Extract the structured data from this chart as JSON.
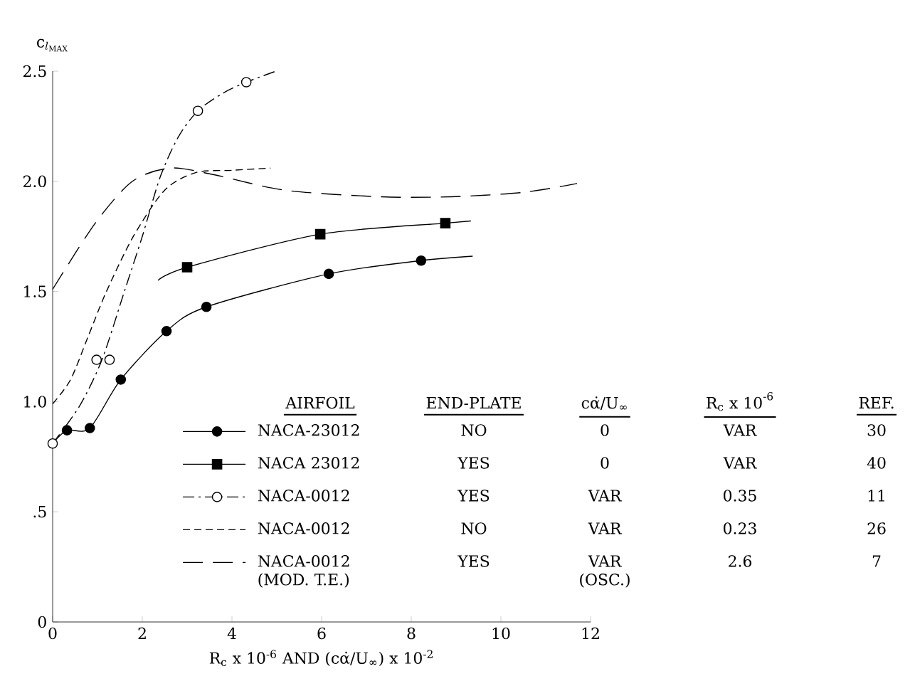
{
  "chart_data": {
    "type": "line",
    "ylabel": "\\mathrm{c}_{l_{\\mathrm{MAX}}}",
    "xlabel": "R$_{c}$ x 10$^{-6}$ AND (cα̇/U$_{∞}$) x 10$^{-2}$",
    "xlim": [
      0,
      12
    ],
    "ylim": [
      0,
      2.5
    ],
    "xticks": [
      0,
      2,
      4,
      6,
      8,
      10,
      12
    ],
    "yticks": [
      0,
      {
        "value": 0.5,
        "label": ".5"
      },
      {
        "value": 1,
        "label": "1.0"
      },
      1.5,
      {
        "value": 2,
        "label": "2.0"
      },
      2.5
    ],
    "legend": "bottom",
    "series": [
      {
        "line_style": "solid",
        "color": "#000000",
        "x": [
          0,
          0.32,
          0.83,
          1.52,
          2.54,
          3.43,
          6.16,
          8.22,
          9.37
        ],
        "values": [
          0.81,
          0.87,
          0.88,
          1.1,
          1.32,
          1.43,
          1.58,
          1.64,
          1.66
        ]
      },
      {
        "name": "NACA-23012",
        "type": "scatter",
        "marker": "circle",
        "color": "#000000",
        "x": [
          0.32,
          0.83,
          1.52,
          2.54,
          3.43,
          6.16,
          8.22
        ],
        "values": [
          0.87,
          0.88,
          1.1,
          1.32,
          1.43,
          1.58,
          1.64
        ]
      },
      {
        "line_style": "solid",
        "color": "#000000",
        "x": [
          2.35,
          3.0,
          5.97,
          8.76,
          9.33
        ],
        "values": [
          1.55,
          1.61,
          1.76,
          1.81,
          1.82
        ]
      },
      {
        "name": "NACA 23012",
        "type": "scatter",
        "marker": "square",
        "color": "#000000",
        "x": [
          3.0,
          5.97,
          8.76
        ],
        "values": [
          1.61,
          1.76,
          1.81
        ]
      },
      {
        "line_style": "dashdotted",
        "color": "#000000",
        "x": [
          0,
          0.6,
          1.1,
          1.6,
          2.0,
          2.4,
          2.8,
          3.24,
          3.8,
          4.32,
          4.98
        ],
        "values": [
          0.81,
          0.98,
          1.19,
          1.5,
          1.75,
          2.02,
          2.2,
          2.32,
          2.4,
          2.45,
          2.5
        ]
      },
      {
        "name": "NACA-0012",
        "type": "scatter",
        "marker": "circle",
        "color": "#ffffff",
        "x": [
          0,
          0.98,
          1.27,
          3.24,
          4.32
        ],
        "values": [
          0.81,
          1.19,
          1.19,
          2.32,
          2.45
        ]
      },
      {
        "name": "NACA-0012",
        "line_style": "dashed",
        "color": "#000000",
        "x": [
          0,
          0.4,
          0.8,
          1.2,
          1.8,
          2.5,
          3.2,
          4.0,
          4.86
        ],
        "values": [
          0.99,
          1.1,
          1.3,
          1.5,
          1.75,
          1.96,
          2.04,
          2.05,
          2.06
        ]
      },
      {
        "name": "NACA-0012 (MOD. T.E.)",
        "line_style": "long dashed",
        "color": "#000000",
        "x": [
          0,
          0.95,
          1.78,
          2.63,
          3.6,
          5.17,
          7.3,
          8.9,
          10.5,
          11.7
        ],
        "values": [
          1.51,
          1.81,
          2.0,
          2.06,
          2.03,
          1.96,
          1.93,
          1.93,
          1.95,
          1.99
        ]
      }
    ],
    "annotations": [
      "AIRFOIL",
      "END-PLATE",
      "cα̇/U$_{∞}$",
      "R$_{c}$ x 10$^{-6}$",
      "REF.",
      "NO",
      "0",
      "VAR",
      "30",
      "YES",
      "0",
      "VAR",
      "40",
      "YES",
      "VAR",
      "0.35",
      "11",
      "NO",
      "VAR",
      "0.23",
      "26",
      "YES",
      "VAR (OSC.)",
      "2.6",
      "7"
    ]
  }
}
